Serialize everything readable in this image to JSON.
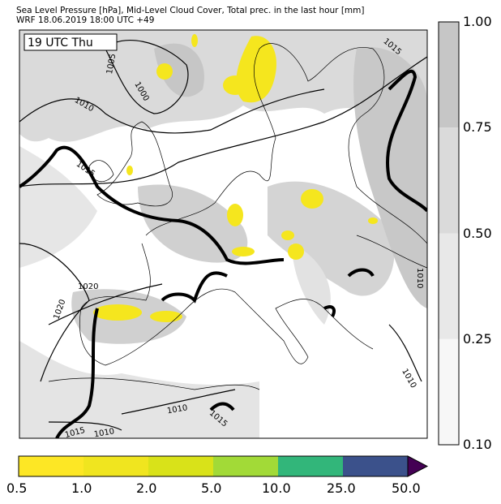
{
  "header": {
    "title_line1": "Sea Level Pressure [hPa], Mid-Level Cloud Cover, Total prec. in the last hour [mm]",
    "title_line2": "WRF 18.06.2019 18:00 UTC +49"
  },
  "map": {
    "time_label": "19 UTC Thu",
    "isobar_labels": [
      "1005",
      "1000",
      "1010",
      "1015",
      "1015",
      "1020",
      "1020",
      "1010",
      "1010",
      "1010",
      "1015",
      "1010",
      "1015"
    ],
    "colors": {
      "land_line": "#000000",
      "precip": "#f5e61e",
      "cloud": "#c8c8c8"
    }
  },
  "cloud_colorbar": {
    "ticks": [
      "1.00",
      "0.75",
      "0.50",
      "0.25",
      "0.10"
    ],
    "colors": [
      "#c6c6c6",
      "#dadada",
      "#e8e8e8",
      "#f7f7f7"
    ]
  },
  "precip_colorbar": {
    "ticks": [
      "0.5",
      "1.0",
      "2.0",
      "5.0",
      "10.0",
      "25.0",
      "50.0"
    ],
    "colors": [
      "#fde725",
      "#f0e51f",
      "#d9e219",
      "#a2da37",
      "#32b67a",
      "#3b518b",
      "#440154"
    ]
  }
}
